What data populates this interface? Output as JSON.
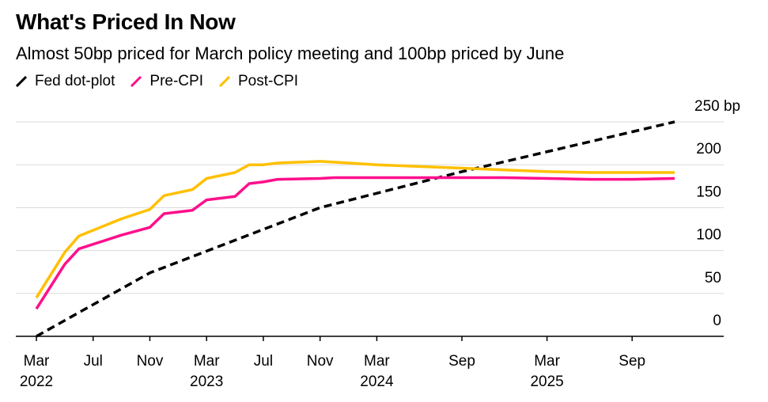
{
  "header": {
    "title": "What's Priced In Now",
    "subtitle": "Almost 50bp priced for March policy meeting and 100bp priced by June"
  },
  "chart_data": {
    "type": "line",
    "title": "What's Priced In Now",
    "subtitle": "Almost 50bp priced for March policy meeting and 100bp priced by June",
    "ylim": [
      0,
      250
    ],
    "y_ticks": [
      {
        "value": 0,
        "label": "0"
      },
      {
        "value": 50,
        "label": "50"
      },
      {
        "value": 100,
        "label": "100"
      },
      {
        "value": 150,
        "label": "150"
      },
      {
        "value": 200,
        "label": "200"
      },
      {
        "value": 250,
        "label": "250 bp"
      }
    ],
    "y_axis_side": "right",
    "grid": true,
    "legend_position": "top-left",
    "x_ticks": [
      {
        "date": "2022-03",
        "label": "Mar",
        "year": "2022"
      },
      {
        "date": "2022-07",
        "label": "Jul",
        "year": ""
      },
      {
        "date": "2022-11",
        "label": "Nov",
        "year": ""
      },
      {
        "date": "2023-03",
        "label": "Mar",
        "year": "2023"
      },
      {
        "date": "2023-07",
        "label": "Jul",
        "year": ""
      },
      {
        "date": "2023-11",
        "label": "Nov",
        "year": ""
      },
      {
        "date": "2024-03",
        "label": "Mar",
        "year": "2024"
      },
      {
        "date": "2024-09",
        "label": "Sep",
        "year": ""
      },
      {
        "date": "2025-03",
        "label": "Mar",
        "year": "2025"
      },
      {
        "date": "2025-09",
        "label": "Sep",
        "year": ""
      }
    ],
    "series": [
      {
        "name": "Fed dot-plot",
        "color": "#000000",
        "style": "dashed",
        "points": [
          [
            "2022-03",
            0
          ],
          [
            "2022-11",
            74
          ],
          [
            "2023-11",
            150
          ],
          [
            "2024-09",
            192
          ],
          [
            "2025-12",
            250
          ]
        ]
      },
      {
        "name": "Pre-CPI",
        "color": "#ff0f8b",
        "style": "solid",
        "points": [
          [
            "2022-03",
            32
          ],
          [
            "2022-05",
            84
          ],
          [
            "2022-06",
            102
          ],
          [
            "2022-09",
            118
          ],
          [
            "2022-11",
            127
          ],
          [
            "2022-12",
            143
          ],
          [
            "2023-02",
            147
          ],
          [
            "2023-03",
            159
          ],
          [
            "2023-05",
            163
          ],
          [
            "2023-06",
            178
          ],
          [
            "2023-07",
            180
          ],
          [
            "2023-08",
            183
          ],
          [
            "2023-11",
            184
          ],
          [
            "2023-12",
            185
          ],
          [
            "2024-03",
            185
          ],
          [
            "2024-09",
            185
          ],
          [
            "2024-12",
            185
          ],
          [
            "2025-03",
            184
          ],
          [
            "2025-06",
            183
          ],
          [
            "2025-09",
            183
          ],
          [
            "2025-12",
            184
          ]
        ]
      },
      {
        "name": "Post-CPI",
        "color": "#ffc000",
        "style": "solid",
        "points": [
          [
            "2022-03",
            45
          ],
          [
            "2022-05",
            98
          ],
          [
            "2022-06",
            117
          ],
          [
            "2022-09",
            137
          ],
          [
            "2022-11",
            148
          ],
          [
            "2022-12",
            164
          ],
          [
            "2023-02",
            171
          ],
          [
            "2023-03",
            184
          ],
          [
            "2023-05",
            191
          ],
          [
            "2023-06",
            200
          ],
          [
            "2023-07",
            200
          ],
          [
            "2023-08",
            202
          ],
          [
            "2023-11",
            204
          ],
          [
            "2024-01",
            202
          ],
          [
            "2024-03",
            200
          ],
          [
            "2024-09",
            196
          ],
          [
            "2024-12",
            194
          ],
          [
            "2025-03",
            192
          ],
          [
            "2025-06",
            191
          ],
          [
            "2025-09",
            191
          ],
          [
            "2025-12",
            191
          ]
        ]
      }
    ]
  }
}
